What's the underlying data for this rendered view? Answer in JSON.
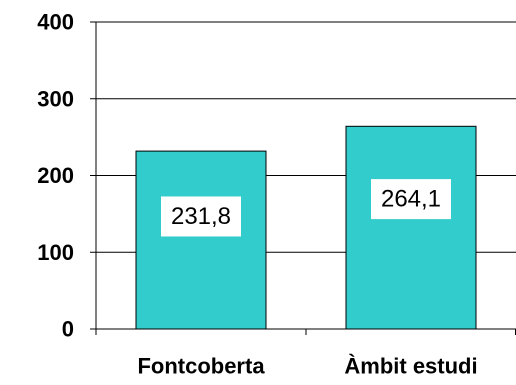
{
  "chart_data": {
    "type": "bar",
    "categories": [
      "Fontcoberta",
      "Àmbit estudi"
    ],
    "values": [
      231.8,
      264.1
    ],
    "data_labels": [
      "231,8",
      "264,1"
    ],
    "title": "",
    "xlabel": "",
    "ylabel": "",
    "ylim": [
      0,
      400
    ],
    "yticks": [
      0,
      100,
      200,
      300,
      400
    ],
    "ytick_labels": [
      "0",
      "100",
      "200",
      "300",
      "400"
    ],
    "grid": true,
    "legend": "none",
    "colors": {
      "bar_fill": "#33CCCC",
      "bar_stroke": "#000000",
      "gridline": "#000000",
      "axis": "#000000",
      "label_box": "#FFFFFF"
    }
  }
}
